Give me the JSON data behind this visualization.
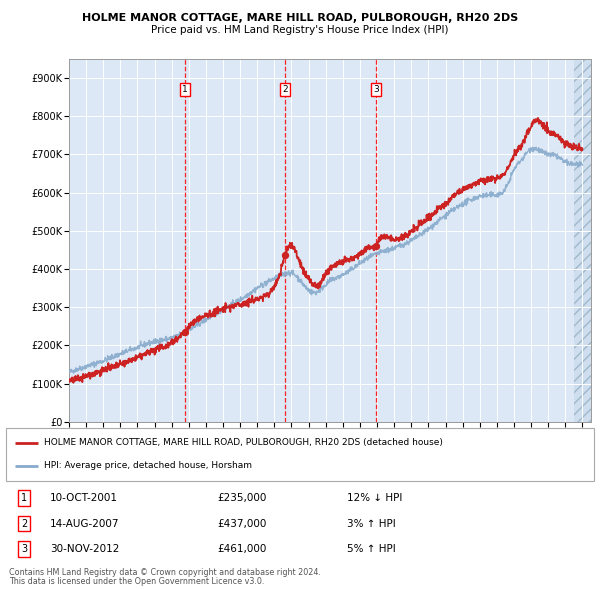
{
  "title1": "HOLME MANOR COTTAGE, MARE HILL ROAD, PULBOROUGH, RH20 2DS",
  "title2": "Price paid vs. HM Land Registry's House Price Index (HPI)",
  "plot_bg": "#dce8f5",
  "legend_label_red": "HOLME MANOR COTTAGE, MARE HILL ROAD, PULBOROUGH, RH20 2DS (detached house)",
  "legend_label_blue": "HPI: Average price, detached house, Horsham",
  "footer1": "Contains HM Land Registry data © Crown copyright and database right 2024.",
  "footer2": "This data is licensed under the Open Government Licence v3.0.",
  "transactions": [
    {
      "num": "1",
      "date": "10-OCT-2001",
      "price": "£235,000",
      "pct": "12% ↓ HPI",
      "year_x": 2001.78,
      "val": 235000
    },
    {
      "num": "2",
      "date": "14-AUG-2007",
      "price": "£437,000",
      "pct": "3% ↑ HPI",
      "year_x": 2007.62,
      "val": 437000
    },
    {
      "num": "3",
      "date": "30-NOV-2012",
      "price": "£461,000",
      "pct": "5% ↑ HPI",
      "year_x": 2012.92,
      "val": 461000
    }
  ],
  "ylim": [
    0,
    950000
  ],
  "xlim_start": 1995.0,
  "xlim_end": 2025.5,
  "hatch_start": 2024.5,
  "yticks": [
    0,
    100000,
    200000,
    300000,
    400000,
    500000,
    600000,
    700000,
    800000,
    900000
  ],
  "ytick_labels": [
    "£0",
    "£100K",
    "£200K",
    "£300K",
    "£400K",
    "£500K",
    "£600K",
    "£700K",
    "£800K",
    "£900K"
  ],
  "xticks": [
    1995,
    1996,
    1997,
    1998,
    1999,
    2000,
    2001,
    2002,
    2003,
    2004,
    2005,
    2006,
    2007,
    2008,
    2009,
    2010,
    2011,
    2012,
    2013,
    2014,
    2015,
    2016,
    2017,
    2018,
    2019,
    2020,
    2021,
    2022,
    2023,
    2024,
    2025
  ],
  "red_color": "#cc2222",
  "blue_color": "#88aacc"
}
